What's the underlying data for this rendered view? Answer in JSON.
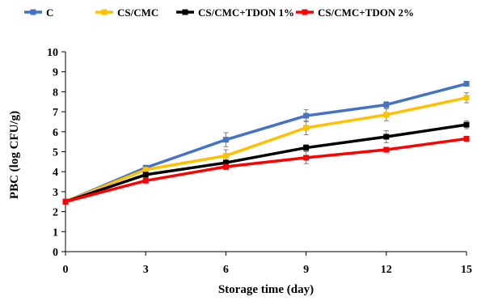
{
  "chart_data": {
    "type": "line",
    "title": "",
    "xlabel": "Storage time (day)",
    "ylabel": "PBC  (log CFU/g)",
    "x": [
      0,
      3,
      6,
      9,
      12,
      15
    ],
    "xlim": [
      0,
      15
    ],
    "ylim": [
      0,
      10
    ],
    "yticks": [
      0,
      1,
      2,
      3,
      4,
      5,
      6,
      7,
      8,
      9,
      10
    ],
    "grid": false,
    "legend_position": "top",
    "series": [
      {
        "name": "C",
        "color": "#4472C4",
        "values": [
          2.5,
          4.2,
          5.6,
          6.8,
          7.35,
          8.4
        ],
        "errors": [
          0.05,
          0.1,
          0.35,
          0.3,
          0.15,
          0.12
        ]
      },
      {
        "name": "CS/CMC",
        "color": "#FFC000",
        "values": [
          2.5,
          4.1,
          4.8,
          6.2,
          6.85,
          7.7
        ],
        "errors": [
          0.05,
          0.1,
          0.3,
          0.35,
          0.3,
          0.25
        ]
      },
      {
        "name": "CS/CMC+TDON 1%",
        "color": "#000000",
        "values": [
          2.5,
          3.85,
          4.45,
          5.2,
          5.75,
          6.35
        ],
        "errors": [
          0.05,
          0.15,
          0.15,
          0.15,
          0.3,
          0.2
        ]
      },
      {
        "name": "CS/CMC+TDON 2%",
        "color": "#FF0000",
        "values": [
          2.5,
          3.55,
          4.25,
          4.7,
          5.1,
          5.65
        ],
        "errors": [
          0.05,
          0.1,
          0.15,
          0.3,
          0.1,
          0.12
        ]
      }
    ]
  }
}
